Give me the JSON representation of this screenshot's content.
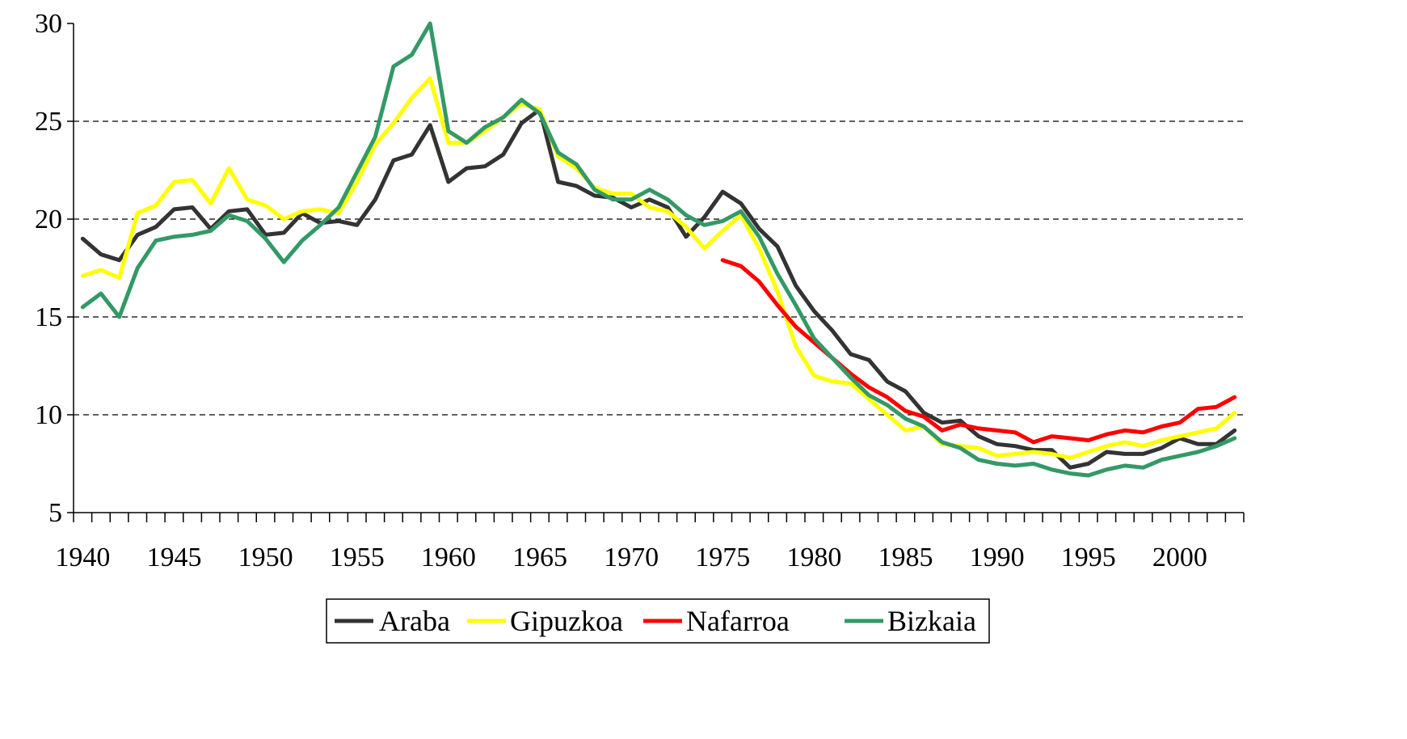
{
  "chart_data": {
    "type": "line",
    "title": "",
    "xlabel": "",
    "ylabel": "",
    "ylim": [
      5,
      30
    ],
    "xlim": [
      1940,
      2003
    ],
    "grid": true,
    "legend_position": "bottom",
    "y_ticks": [
      "5",
      "10",
      "15",
      "20",
      "25",
      "30"
    ],
    "x_ticks": [
      "1940",
      "1945",
      "1950",
      "1955",
      "1960",
      "1965",
      "1970",
      "1975",
      "1980",
      "1985",
      "1990",
      "1995",
      "2000"
    ],
    "series": [
      {
        "name": "Araba",
        "color": "#333333",
        "x_start": 1940,
        "values": [
          19.0,
          18.2,
          17.9,
          19.2,
          19.6,
          20.5,
          20.6,
          19.5,
          20.4,
          20.5,
          19.2,
          19.3,
          20.3,
          19.8,
          19.9,
          19.7,
          21.0,
          23.0,
          23.3,
          24.8,
          21.9,
          22.6,
          22.7,
          23.3,
          24.9,
          25.6,
          21.9,
          21.7,
          21.2,
          21.1,
          20.6,
          21.0,
          20.6,
          19.1,
          20.1,
          21.4,
          20.8,
          19.5,
          18.6,
          16.6,
          15.3,
          14.3,
          13.1,
          12.8,
          11.7,
          11.2,
          10.1,
          9.6,
          9.7,
          8.9,
          8.5,
          8.4,
          8.2,
          8.2,
          7.3,
          7.5,
          8.1,
          8.0,
          8.0,
          8.3,
          8.8,
          8.5,
          8.5,
          9.2
        ]
      },
      {
        "name": "Gipuzkoa",
        "color": "#ffff00",
        "x_start": 1940,
        "values": [
          17.1,
          17.4,
          17.0,
          20.3,
          20.7,
          21.9,
          22.0,
          20.8,
          22.6,
          21.0,
          20.7,
          20.0,
          20.4,
          20.5,
          20.3,
          21.9,
          23.8,
          24.9,
          26.2,
          27.2,
          23.9,
          23.9,
          24.5,
          25.2,
          25.9,
          25.6,
          23.2,
          22.6,
          21.6,
          21.3,
          21.3,
          20.6,
          20.4,
          19.6,
          18.5,
          19.4,
          20.2,
          18.5,
          16.3,
          13.5,
          12.0,
          11.7,
          11.6,
          10.8,
          10.0,
          9.2,
          9.4,
          8.5,
          8.4,
          8.3,
          7.9,
          8.0,
          8.1,
          8.0,
          7.8,
          8.1,
          8.4,
          8.6,
          8.4,
          8.7,
          8.9,
          9.1,
          9.3,
          10.1
        ]
      },
      {
        "name": "Nafarroa",
        "color": "#ff0000",
        "x_start": 1975,
        "values": [
          17.9,
          17.6,
          16.8,
          15.6,
          14.5,
          13.7,
          12.9,
          12.1,
          11.4,
          10.9,
          10.2,
          9.9,
          9.2,
          9.5,
          9.3,
          9.2,
          9.1,
          8.6,
          8.9,
          8.8,
          8.7,
          9.0,
          9.2,
          9.1,
          9.4,
          9.6,
          10.3,
          10.4,
          10.9
        ]
      },
      {
        "name": "Bizkaia",
        "color": "#339966",
        "x_start": 1940,
        "values": [
          15.5,
          16.2,
          15.0,
          17.5,
          18.9,
          19.1,
          19.2,
          19.4,
          20.2,
          19.9,
          19.0,
          17.8,
          18.9,
          19.7,
          20.6,
          22.4,
          24.2,
          27.8,
          28.4,
          30.0,
          24.5,
          23.9,
          24.7,
          25.2,
          26.1,
          25.4,
          23.4,
          22.8,
          21.5,
          21.0,
          21.0,
          21.5,
          21.0,
          20.2,
          19.7,
          19.9,
          20.4,
          19.1,
          17.2,
          15.6,
          13.9,
          12.9,
          11.9,
          11.0,
          10.5,
          9.8,
          9.4,
          8.6,
          8.3,
          7.7,
          7.5,
          7.4,
          7.5,
          7.2,
          7.0,
          6.9,
          7.2,
          7.4,
          7.3,
          7.7,
          7.9,
          8.1,
          8.4,
          8.8
        ]
      }
    ]
  }
}
